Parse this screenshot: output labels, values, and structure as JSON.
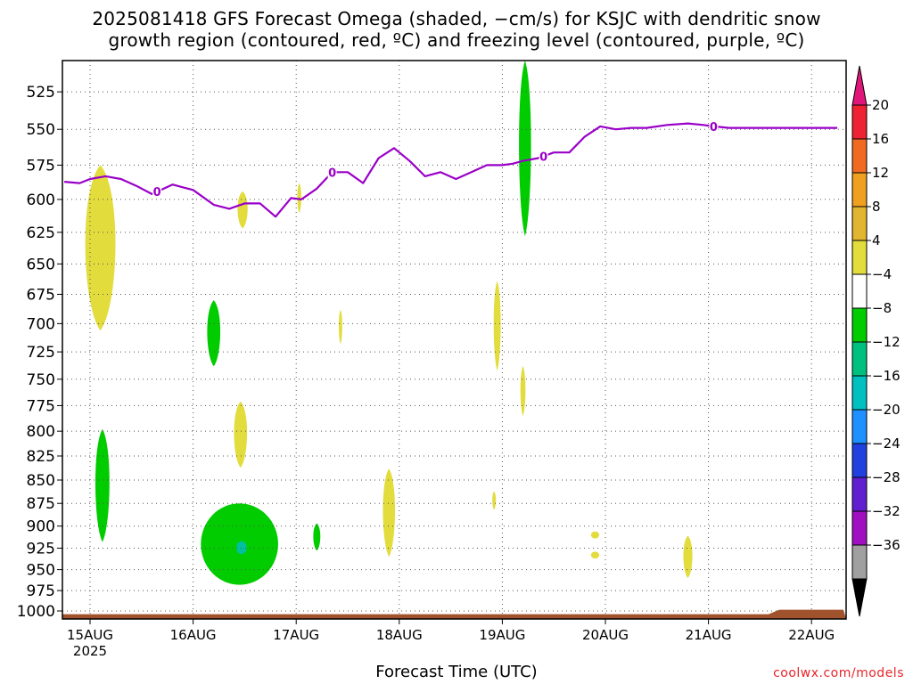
{
  "chart_data": {
    "type": "heatmap",
    "title_line1": "2025081418 GFS Forecast Omega (shaded, −cm/s) for KSJC with dendritic snow",
    "title_line2": "growth region (contoured, red, ºC) and freezing level (contoured, purple, ºC)",
    "xlabel": "Forecast Time (UTC)",
    "credit": "coolwx.com/models",
    "x_ticks": [
      "15AUG",
      "16AUG",
      "17AUG",
      "18AUG",
      "19AUG",
      "20AUG",
      "21AUG",
      "22AUG"
    ],
    "x_year": "2025",
    "y_ticks": [
      525,
      550,
      575,
      600,
      625,
      650,
      675,
      700,
      725,
      750,
      775,
      800,
      825,
      850,
      875,
      900,
      925,
      950,
      975,
      1000
    ],
    "ylim_hpa": [
      1010,
      505
    ],
    "xlim_days": [
      -0.25,
      7.25
    ],
    "colorbar": {
      "labels": [
        "20",
        "16",
        "12",
        "8",
        "4",
        "−4",
        "−8",
        "−12",
        "−16",
        "−20",
        "−24",
        "−28",
        "−32",
        "−36"
      ],
      "colors": [
        "#ee2233",
        "#f06a22",
        "#f0a020",
        "#e2b530",
        "#e2dc3c",
        "#ffffff",
        "#00cc00",
        "#00c080",
        "#00c0c0",
        "#1e90ff",
        "#2040e0",
        "#6020d0",
        "#a010c0",
        "#a0a0a0"
      ],
      "top_arrow_color": "#e0167a",
      "bottom_arrow_color": "#000000"
    },
    "colors": {
      "yellow": "#e2dc3c",
      "green": "#00cc00",
      "teal": "#00c0a0",
      "freezing_line": "#9a00c8",
      "ground": "#a0522d",
      "grid": "#555555"
    },
    "freezing_level_label": "0",
    "freezing_level": {
      "days": [
        -0.25,
        -0.1,
        0.0,
        0.15,
        0.3,
        0.45,
        0.6,
        0.8,
        0.9,
        1.0,
        1.2,
        1.35,
        1.5,
        1.65,
        1.8,
        1.95,
        2.05,
        2.2,
        2.35,
        2.5,
        2.65,
        2.8,
        2.95,
        3.1,
        3.25,
        3.4,
        3.55,
        3.7,
        3.85,
        4.0,
        4.1,
        4.2,
        4.35,
        4.5,
        4.65,
        4.8,
        4.95,
        5.1,
        5.25,
        5.4,
        5.6,
        5.8,
        5.95,
        6.05,
        6.2,
        6.35,
        6.55,
        6.75,
        6.9,
        7.05,
        7.25
      ],
      "hpa": [
        587,
        588,
        585,
        583,
        585,
        590,
        596,
        589,
        591,
        593,
        604,
        607,
        603,
        603,
        613,
        599,
        600,
        592,
        580,
        580,
        588,
        570,
        563,
        572,
        583,
        580,
        585,
        580,
        575,
        575,
        574,
        572,
        570,
        566,
        566,
        555,
        548,
        550,
        549,
        549,
        547,
        546,
        547,
        548,
        549,
        549,
        549,
        549,
        549,
        549,
        549
      ]
    },
    "freezing_label_days": [
      0.65,
      2.35,
      4.4,
      6.05
    ],
    "omega_regions": [
      {
        "level": "4 to 8",
        "color": "yellow",
        "day": 0.1,
        "top_hpa": 575,
        "bottom_hpa": 706,
        "width_days": 0.3
      },
      {
        "level": "4 to 8",
        "color": "yellow",
        "day": 1.48,
        "top_hpa": 594,
        "bottom_hpa": 622,
        "width_days": 0.1
      },
      {
        "level": "4 to 8",
        "color": "yellow",
        "day": 2.03,
        "top_hpa": 588,
        "bottom_hpa": 610,
        "width_days": 0.04
      },
      {
        "level": "4 to 8",
        "color": "yellow",
        "day": 2.43,
        "top_hpa": 688,
        "bottom_hpa": 718,
        "width_days": 0.03
      },
      {
        "level": "4 to 8",
        "color": "yellow",
        "day": 1.46,
        "top_hpa": 771,
        "bottom_hpa": 837,
        "width_days": 0.13
      },
      {
        "level": "4 to 8",
        "color": "yellow",
        "day": 2.9,
        "top_hpa": 838,
        "bottom_hpa": 935,
        "width_days": 0.12
      },
      {
        "level": "4 to 8",
        "color": "yellow",
        "day": 3.95,
        "top_hpa": 664,
        "bottom_hpa": 742,
        "width_days": 0.07
      },
      {
        "level": "4 to 8",
        "color": "yellow",
        "day": 4.2,
        "top_hpa": 738,
        "bottom_hpa": 785,
        "width_days": 0.05
      },
      {
        "level": "4 to 8",
        "color": "yellow",
        "day": 3.92,
        "top_hpa": 862,
        "bottom_hpa": 882,
        "width_days": 0.02
      },
      {
        "level": "4 to 8",
        "color": "yellow",
        "day": 5.8,
        "top_hpa": 911,
        "bottom_hpa": 960,
        "width_days": 0.09
      },
      {
        "level": "4 to 8",
        "color": "yellow",
        "day": 4.9,
        "top_hpa": 906,
        "bottom_hpa": 914,
        "width_days": 0.08
      },
      {
        "level": "4 to 8",
        "color": "yellow",
        "day": 4.9,
        "top_hpa": 929,
        "bottom_hpa": 937,
        "width_days": 0.08
      },
      {
        "level": "-4 to -8",
        "color": "green",
        "day": 4.22,
        "top_hpa": 505,
        "bottom_hpa": 628,
        "width_days": 0.12
      },
      {
        "level": "-4 to -8",
        "color": "green",
        "day": 1.2,
        "top_hpa": 680,
        "bottom_hpa": 738,
        "width_days": 0.13
      },
      {
        "level": "-4 to -8",
        "color": "green",
        "day": 0.12,
        "top_hpa": 798,
        "bottom_hpa": 918,
        "width_days": 0.14
      },
      {
        "level": "-4 to -8",
        "color": "green",
        "day": 1.45,
        "top_hpa": 875,
        "bottom_hpa": 968,
        "width_days": 0.75
      },
      {
        "level": "-4 to -8",
        "color": "green",
        "day": 2.2,
        "top_hpa": 897,
        "bottom_hpa": 928,
        "width_days": 0.07
      },
      {
        "level": "-8 to -12",
        "color": "teal",
        "day": 1.47,
        "top_hpa": 917,
        "bottom_hpa": 932,
        "width_days": 0.1
      }
    ],
    "ground_hpa": 1004
  }
}
